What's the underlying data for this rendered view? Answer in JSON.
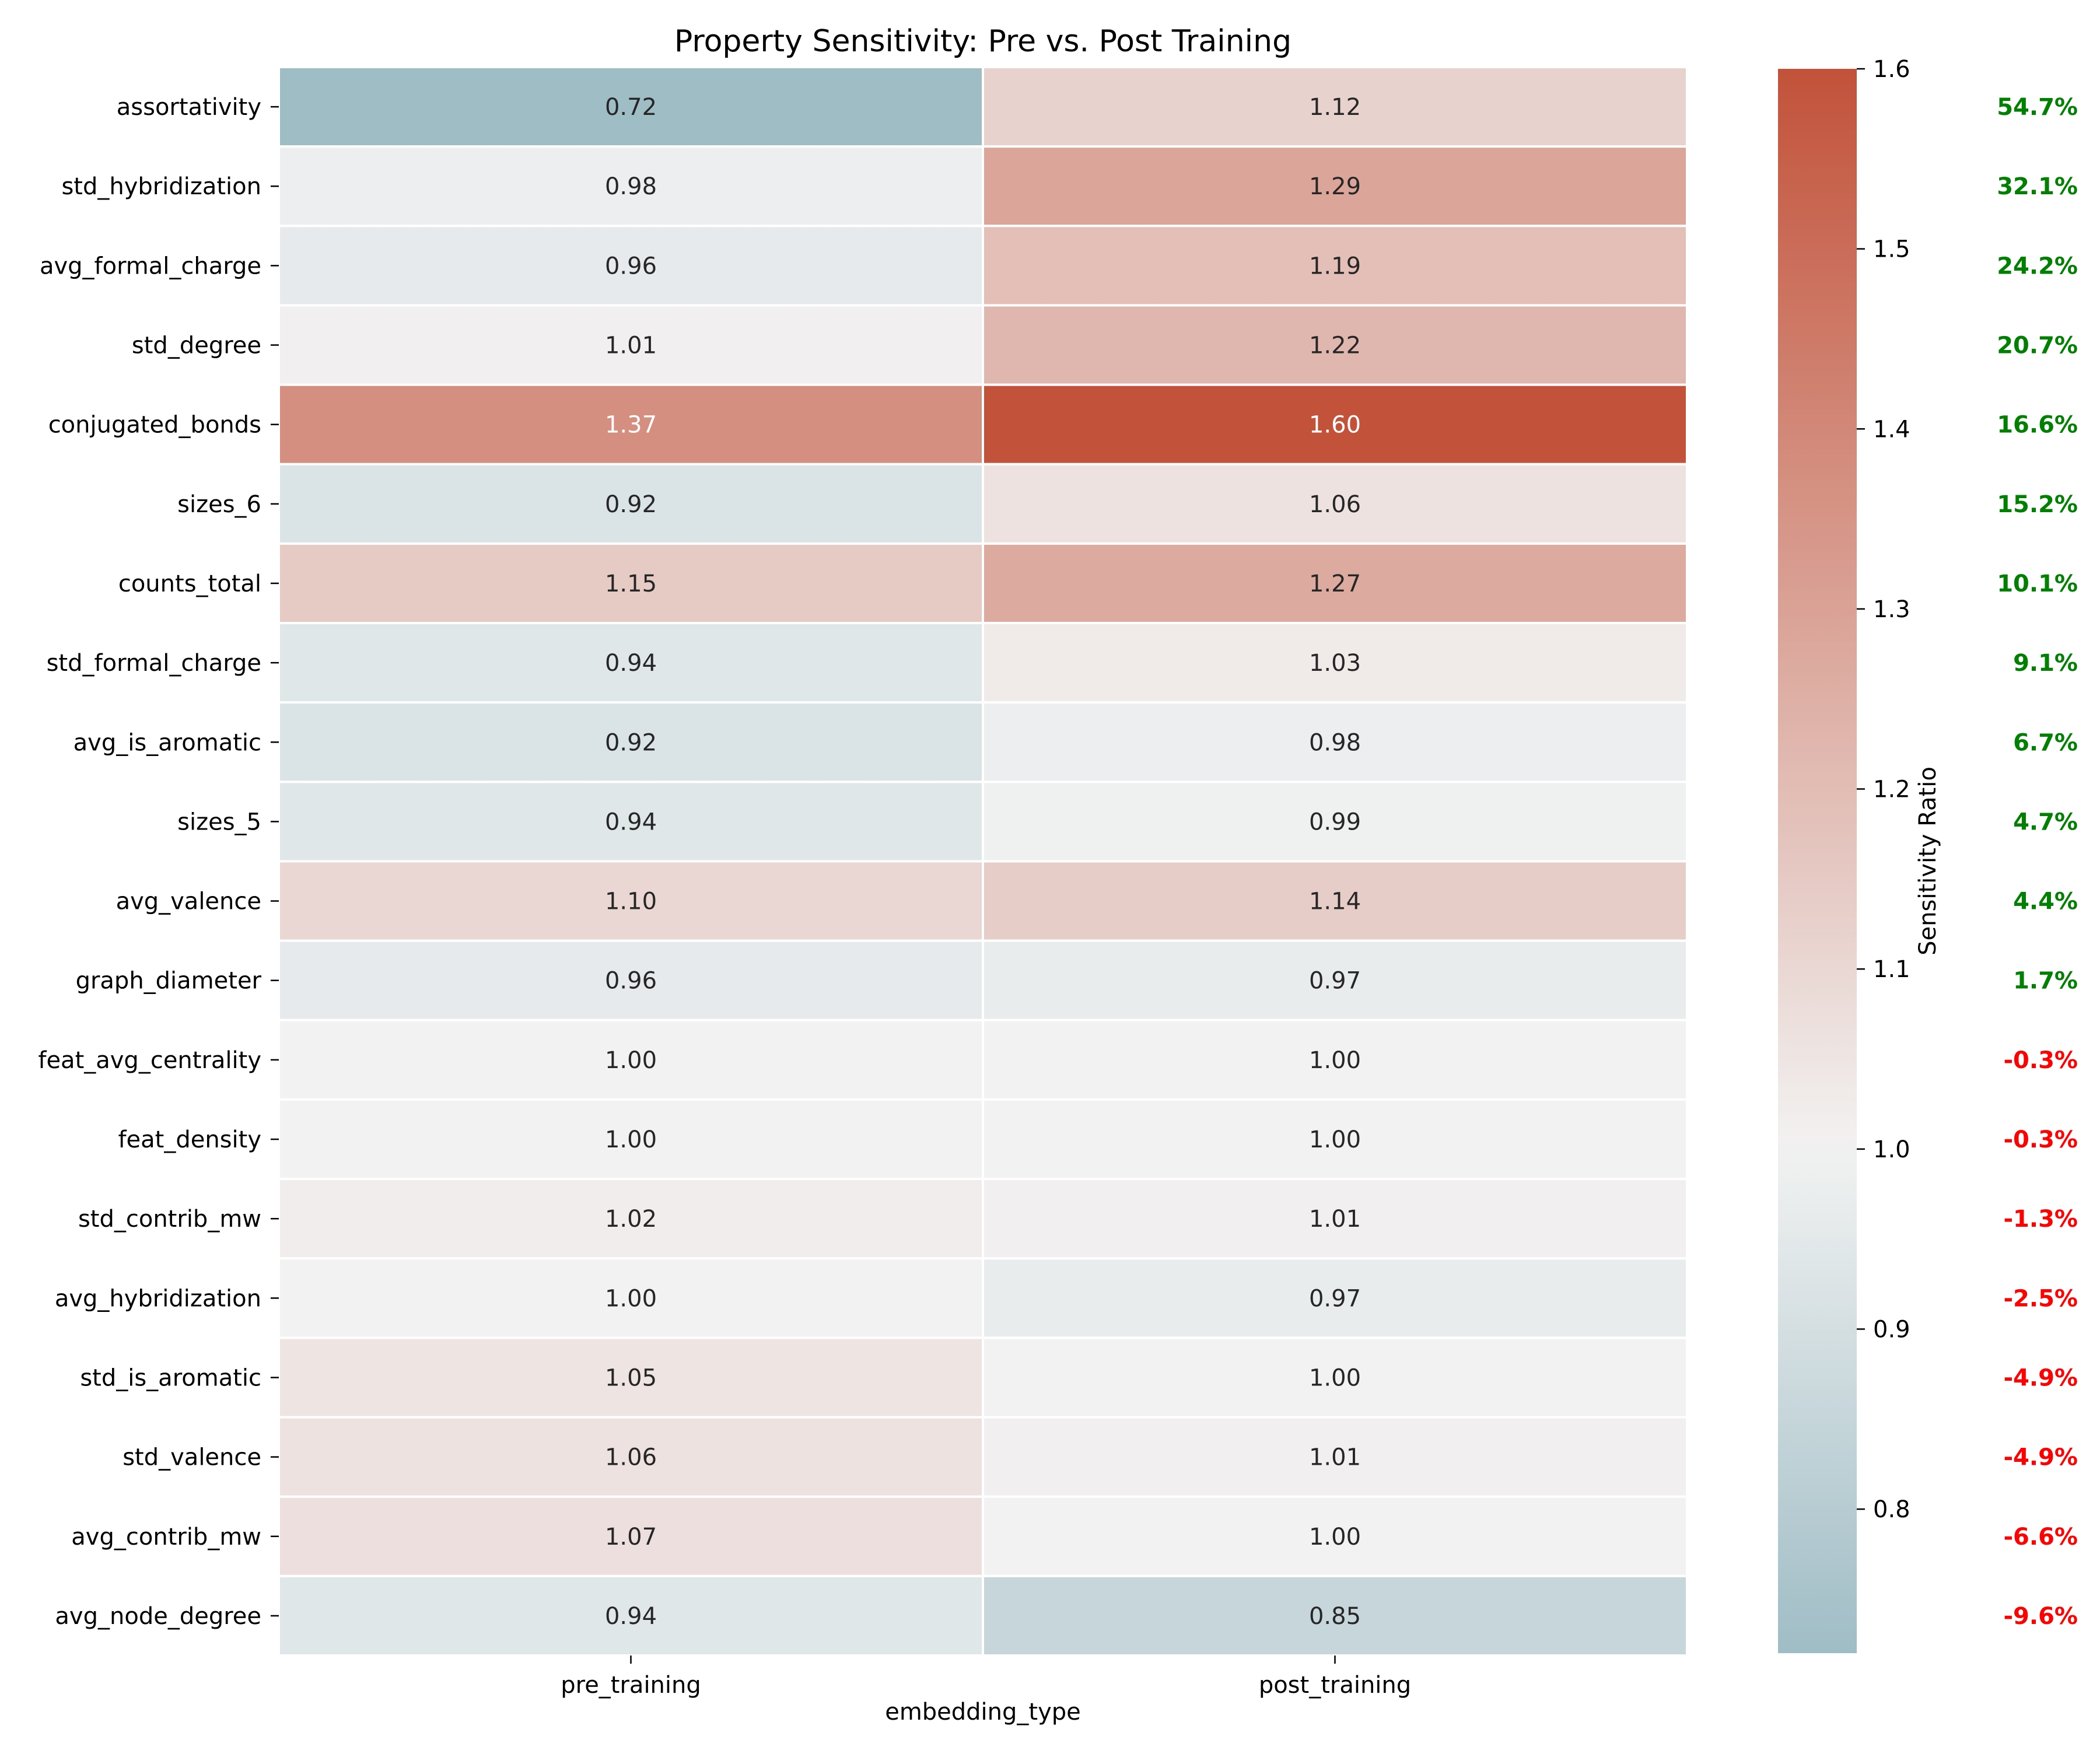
{
  "chart_data": {
    "type": "heatmap",
    "title": "Property Sensitivity: Pre vs. Post Training",
    "xlabel": "embedding_type",
    "colorbar_label": "Sensitivity Ratio",
    "columns": [
      "pre_training",
      "post_training"
    ],
    "rows": [
      {
        "name": "assortativity",
        "pre": 0.72,
        "post": 1.12,
        "pre_label": "0.72",
        "post_label": "1.12",
        "change": "54.7%",
        "direction": "up"
      },
      {
        "name": "std_hybridization",
        "pre": 0.98,
        "post": 1.29,
        "pre_label": "0.98",
        "post_label": "1.29",
        "change": "32.1%",
        "direction": "up"
      },
      {
        "name": "avg_formal_charge",
        "pre": 0.96,
        "post": 1.19,
        "pre_label": "0.96",
        "post_label": "1.19",
        "change": "24.2%",
        "direction": "up"
      },
      {
        "name": "std_degree",
        "pre": 1.01,
        "post": 1.22,
        "pre_label": "1.01",
        "post_label": "1.22",
        "change": "20.7%",
        "direction": "up"
      },
      {
        "name": "conjugated_bonds",
        "pre": 1.37,
        "post": 1.6,
        "pre_label": "1.37",
        "post_label": "1.60",
        "change": "16.6%",
        "direction": "up"
      },
      {
        "name": "sizes_6",
        "pre": 0.92,
        "post": 1.06,
        "pre_label": "0.92",
        "post_label": "1.06",
        "change": "15.2%",
        "direction": "up"
      },
      {
        "name": "counts_total",
        "pre": 1.15,
        "post": 1.27,
        "pre_label": "1.15",
        "post_label": "1.27",
        "change": "10.1%",
        "direction": "up"
      },
      {
        "name": "std_formal_charge",
        "pre": 0.94,
        "post": 1.03,
        "pre_label": "0.94",
        "post_label": "1.03",
        "change": "9.1%",
        "direction": "up"
      },
      {
        "name": "avg_is_aromatic",
        "pre": 0.92,
        "post": 0.98,
        "pre_label": "0.92",
        "post_label": "0.98",
        "change": "6.7%",
        "direction": "up"
      },
      {
        "name": "sizes_5",
        "pre": 0.94,
        "post": 0.99,
        "pre_label": "0.94",
        "post_label": "0.99",
        "change": "4.7%",
        "direction": "up"
      },
      {
        "name": "avg_valence",
        "pre": 1.1,
        "post": 1.14,
        "pre_label": "1.10",
        "post_label": "1.14",
        "change": "4.4%",
        "direction": "up"
      },
      {
        "name": "graph_diameter",
        "pre": 0.96,
        "post": 0.97,
        "pre_label": "0.96",
        "post_label": "0.97",
        "change": "1.7%",
        "direction": "up"
      },
      {
        "name": "feat_avg_centrality",
        "pre": 1.0,
        "post": 1.0,
        "pre_label": "1.00",
        "post_label": "1.00",
        "change": "-0.3%",
        "direction": "down"
      },
      {
        "name": "feat_density",
        "pre": 1.0,
        "post": 1.0,
        "pre_label": "1.00",
        "post_label": "1.00",
        "change": "-0.3%",
        "direction": "down"
      },
      {
        "name": "std_contrib_mw",
        "pre": 1.02,
        "post": 1.01,
        "pre_label": "1.02",
        "post_label": "1.01",
        "change": "-1.3%",
        "direction": "down"
      },
      {
        "name": "avg_hybridization",
        "pre": 1.0,
        "post": 0.97,
        "pre_label": "1.00",
        "post_label": "0.97",
        "change": "-2.5%",
        "direction": "down"
      },
      {
        "name": "std_is_aromatic",
        "pre": 1.05,
        "post": 1.0,
        "pre_label": "1.05",
        "post_label": "1.00",
        "change": "-4.9%",
        "direction": "down"
      },
      {
        "name": "std_valence",
        "pre": 1.06,
        "post": 1.01,
        "pre_label": "1.06",
        "post_label": "1.01",
        "change": "-4.9%",
        "direction": "down"
      },
      {
        "name": "avg_contrib_mw",
        "pre": 1.07,
        "post": 1.0,
        "pre_label": "1.07",
        "post_label": "1.00",
        "change": "-6.6%",
        "direction": "down"
      },
      {
        "name": "avg_node_degree",
        "pre": 0.94,
        "post": 0.85,
        "pre_label": "0.94",
        "post_label": "0.85",
        "change": "-9.6%",
        "direction": "down"
      }
    ],
    "colorbar": {
      "min": 0.72,
      "max": 1.6,
      "center": 1.0,
      "ticks": [
        0.8,
        0.9,
        1.0,
        1.1,
        1.2,
        1.3,
        1.4,
        1.5,
        1.6
      ],
      "tick_labels": [
        "0.8",
        "0.9",
        "1.0",
        "1.1",
        "1.2",
        "1.3",
        "1.4",
        "1.5",
        "1.6"
      ],
      "low_color": "#9fbdc5",
      "mid_color": "#f2f2f2",
      "high_color": "#c2523a"
    },
    "positive_change_color": "#008000",
    "negative_change_color": "#ff0000"
  }
}
